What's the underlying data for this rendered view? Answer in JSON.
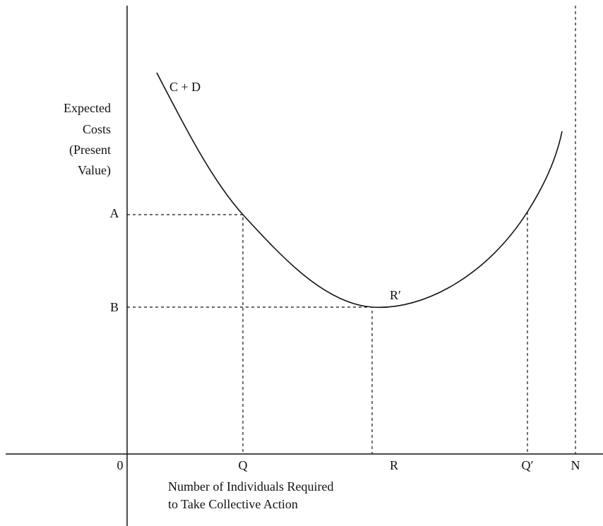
{
  "y_axis_label": [
    "Expected",
    "Costs",
    "(Present",
    "Value)"
  ],
  "y_labels": {
    "a": "A",
    "b": "B"
  },
  "x_labels": {
    "origin": "0",
    "q": "Q",
    "r": "R",
    "q_prime": "Q′",
    "n": "N"
  },
  "curve_label": "C + D",
  "point_label": "R′",
  "x_axis_label": [
    "Number of Individuals Required",
    "to Take Collective Action"
  ]
}
